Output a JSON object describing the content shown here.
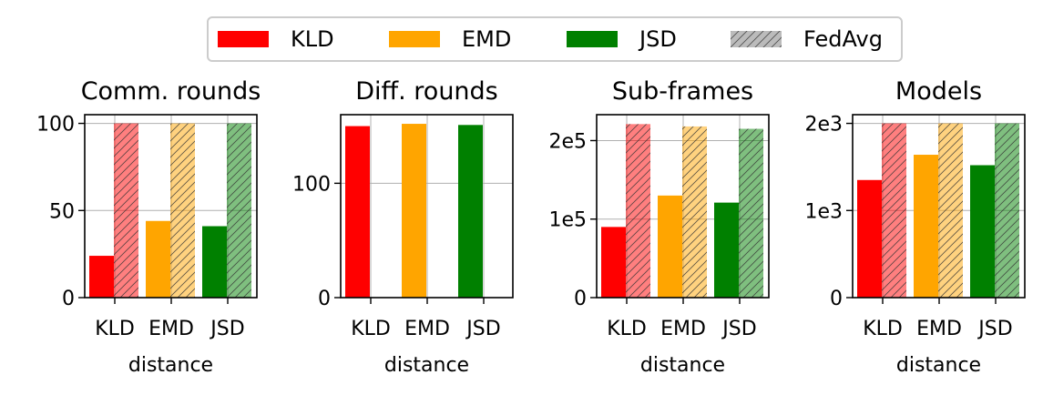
{
  "colors": {
    "KLD": "#ff0000",
    "EMD": "#ffa500",
    "JSD": "#008000",
    "fedavg_swatch": "#bbbbbb",
    "grid": "#b0b0b0"
  },
  "legend": {
    "items": [
      {
        "label": "KLD",
        "key": "KLD"
      },
      {
        "label": "EMD",
        "key": "EMD"
      },
      {
        "label": "JSD",
        "key": "JSD"
      },
      {
        "label": "FedAvg",
        "key": "fedavg"
      }
    ]
  },
  "chart_data": [
    {
      "type": "bar",
      "title": "Comm. rounds",
      "xlabel": "distance",
      "ylabel": "",
      "categories": [
        "KLD",
        "EMD",
        "JSD"
      ],
      "ylim": [
        0,
        105
      ],
      "yticks": [
        0,
        50,
        100
      ],
      "ytick_labels": [
        "0",
        "50",
        "100"
      ],
      "grid": true,
      "series": [
        {
          "name": "",
          "method": "distance",
          "values": [
            24,
            44,
            41
          ]
        },
        {
          "name": "FedAvg",
          "method": "fedavg",
          "values": [
            100,
            100,
            100
          ]
        }
      ]
    },
    {
      "type": "bar",
      "title": "Diff. rounds",
      "xlabel": "distance",
      "ylabel": "",
      "categories": [
        "KLD",
        "EMD",
        "JSD"
      ],
      "ylim": [
        0,
        160
      ],
      "yticks": [
        0,
        100
      ],
      "ytick_labels": [
        "0",
        "100"
      ],
      "grid": true,
      "series": [
        {
          "name": "",
          "method": "distance",
          "values": [
            150,
            152,
            151
          ]
        }
      ]
    },
    {
      "type": "bar",
      "title": "Sub-frames",
      "xlabel": "distance",
      "ylabel": "",
      "categories": [
        "KLD",
        "EMD",
        "JSD"
      ],
      "ylim": [
        0,
        233000
      ],
      "yticks": [
        0,
        100000,
        200000
      ],
      "ytick_labels": [
        "0",
        "1e5",
        "2e5"
      ],
      "grid": true,
      "series": [
        {
          "name": "",
          "method": "distance",
          "values": [
            90000,
            130000,
            121000
          ]
        },
        {
          "name": "FedAvg",
          "method": "fedavg",
          "values": [
            221000,
            218000,
            215000
          ]
        }
      ]
    },
    {
      "type": "bar",
      "title": "Models",
      "xlabel": "distance",
      "ylabel": "",
      "categories": [
        "KLD",
        "EMD",
        "JSD"
      ],
      "ylim": [
        0,
        2100
      ],
      "yticks": [
        0,
        1000,
        2000
      ],
      "ytick_labels": [
        "0",
        "1e3",
        "2e3"
      ],
      "grid": true,
      "series": [
        {
          "name": "",
          "method": "distance",
          "values": [
            1350,
            1640,
            1520
          ]
        },
        {
          "name": "FedAvg",
          "method": "fedavg",
          "values": [
            2000,
            2000,
            2000
          ]
        }
      ]
    }
  ]
}
